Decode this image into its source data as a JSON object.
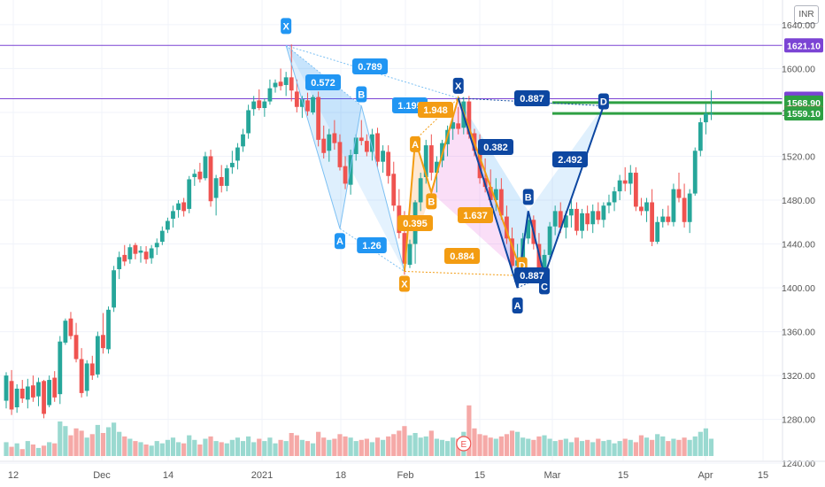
{
  "chart_data": {
    "type": "candlestick",
    "currency": "INR",
    "y_axis": {
      "ticks": [
        1240,
        1280,
        1320,
        1360,
        1400,
        1440,
        1480,
        1520,
        1560,
        1600,
        1640
      ],
      "tick_labels": [
        "1240.00",
        "1280.00",
        "1320.00",
        "1360.00",
        "1400.00",
        "1440.00",
        "1480.00",
        "1520.00",
        "1560.00",
        "1600.00",
        "1640.00"
      ],
      "range": [
        1228,
        1648
      ]
    },
    "x_axis": {
      "labels": [
        "12",
        "Dec",
        "14",
        "2021",
        "18",
        "Feb",
        "15",
        "Mar",
        "15",
        "Apr",
        "15"
      ]
    },
    "colors": {
      "up": "#26a69a",
      "down": "#ef5350",
      "purple": "#7b44d4",
      "green": "#2ea043",
      "blue_pattern": "#0d47a1",
      "orange_pattern": "#f39c12",
      "light_pattern": "#2196f3"
    },
    "price_labels": [
      {
        "text": "1621.10",
        "value": 1621.1,
        "color": "#7b44d4"
      },
      {
        "text": "1572.50",
        "value": 1572.5,
        "color": "#7b44d4"
      },
      {
        "text": "1568.90",
        "value": 1568.9,
        "color": "#2ea043"
      },
      {
        "text": "1559.35",
        "value": 1559.35,
        "color": "#ef5350"
      },
      {
        "text": "1559.10",
        "value": 1559.1,
        "color": "#2ea043"
      }
    ],
    "patterns": {
      "light": {
        "points": [
          [
            "X",
            1621
          ],
          [
            "A",
            1454
          ],
          [
            "B",
            1566
          ],
          [
            "X",
            1415
          ]
        ],
        "ratios": [
          "0.572",
          "0.789",
          "1.26"
        ]
      },
      "orange": {
        "points": [
          [
            "X",
            1415
          ],
          [
            "A",
            1535
          ],
          [
            "B",
            1487
          ],
          [
            "C",
            1573
          ],
          [
            "D",
            1411
          ]
        ],
        "ratios": [
          "0.395",
          "1.948",
          "1.637",
          "0.884"
        ]
      },
      "navy": {
        "points": [
          [
            "X",
            1573
          ],
          [
            "A",
            1400
          ],
          [
            "B",
            1470
          ],
          [
            "C",
            1411
          ],
          [
            "D",
            1566
          ]
        ],
        "ratios": [
          "0.382",
          "0.887",
          "2.492",
          "0.887"
        ]
      },
      "extra_labels": [
        "1.195"
      ]
    },
    "candles": [
      [
        1297,
        1323,
        1290,
        1320
      ],
      [
        1315,
        1325,
        1284,
        1289
      ],
      [
        1291,
        1312,
        1286,
        1308
      ],
      [
        1308,
        1316,
        1295,
        1299
      ],
      [
        1298,
        1317,
        1290,
        1310
      ],
      [
        1311,
        1320,
        1296,
        1300
      ],
      [
        1301,
        1318,
        1292,
        1314
      ],
      [
        1315,
        1316,
        1281,
        1285
      ],
      [
        1293,
        1320,
        1291,
        1316
      ],
      [
        1318,
        1324,
        1296,
        1300
      ],
      [
        1303,
        1356,
        1294,
        1351
      ],
      [
        1350,
        1372,
        1348,
        1370
      ],
      [
        1372,
        1378,
        1353,
        1356
      ],
      [
        1357,
        1368,
        1332,
        1335
      ],
      [
        1335,
        1345,
        1300,
        1304
      ],
      [
        1306,
        1334,
        1301,
        1331
      ],
      [
        1331,
        1338,
        1316,
        1320
      ],
      [
        1321,
        1360,
        1318,
        1356
      ],
      [
        1357,
        1377,
        1340,
        1345
      ],
      [
        1344,
        1383,
        1340,
        1380
      ],
      [
        1382,
        1420,
        1378,
        1416
      ],
      [
        1417,
        1433,
        1408,
        1428
      ],
      [
        1430,
        1439,
        1420,
        1424
      ],
      [
        1426,
        1440,
        1422,
        1437
      ],
      [
        1439,
        1441,
        1426,
        1431
      ],
      [
        1432,
        1438,
        1423,
        1434
      ],
      [
        1433,
        1438,
        1422,
        1426
      ],
      [
        1427,
        1439,
        1422,
        1436
      ],
      [
        1437,
        1445,
        1430,
        1441
      ],
      [
        1442,
        1456,
        1439,
        1452
      ],
      [
        1453,
        1464,
        1450,
        1461
      ],
      [
        1463,
        1475,
        1455,
        1470
      ],
      [
        1471,
        1480,
        1464,
        1477
      ],
      [
        1478,
        1482,
        1465,
        1470
      ],
      [
        1472,
        1502,
        1468,
        1499
      ],
      [
        1501,
        1508,
        1493,
        1504
      ],
      [
        1506,
        1514,
        1496,
        1499
      ],
      [
        1500,
        1524,
        1498,
        1520
      ],
      [
        1520,
        1526,
        1474,
        1479
      ],
      [
        1482,
        1503,
        1466,
        1500
      ],
      [
        1501,
        1512,
        1487,
        1493
      ],
      [
        1493,
        1512,
        1488,
        1509
      ],
      [
        1510,
        1525,
        1504,
        1514
      ],
      [
        1516,
        1532,
        1508,
        1528
      ],
      [
        1529,
        1545,
        1524,
        1540
      ],
      [
        1541,
        1567,
        1536,
        1562
      ],
      [
        1563,
        1575,
        1557,
        1570
      ],
      [
        1571,
        1581,
        1562,
        1564
      ],
      [
        1564,
        1573,
        1556,
        1570
      ],
      [
        1570,
        1590,
        1567,
        1582
      ],
      [
        1583,
        1590,
        1578,
        1587
      ],
      [
        1588,
        1600,
        1580,
        1584
      ],
      [
        1585,
        1597,
        1575,
        1592
      ],
      [
        1592,
        1622,
        1570,
        1580
      ],
      [
        1579,
        1590,
        1560,
        1565
      ],
      [
        1565,
        1575,
        1555,
        1572
      ],
      [
        1571,
        1578,
        1557,
        1561
      ],
      [
        1560,
        1576,
        1558,
        1574
      ],
      [
        1574,
        1579,
        1529,
        1535
      ],
      [
        1536,
        1548,
        1518,
        1523
      ],
      [
        1525,
        1545,
        1515,
        1540
      ],
      [
        1541,
        1553,
        1526,
        1532
      ],
      [
        1533,
        1540,
        1507,
        1510
      ],
      [
        1511,
        1520,
        1490,
        1495
      ],
      [
        1494,
        1526,
        1485,
        1521
      ],
      [
        1522,
        1540,
        1516,
        1537
      ],
      [
        1537,
        1553,
        1530,
        1534
      ],
      [
        1534,
        1540,
        1520,
        1524
      ],
      [
        1524,
        1545,
        1516,
        1540
      ],
      [
        1541,
        1546,
        1510,
        1515
      ],
      [
        1515,
        1530,
        1505,
        1525
      ],
      [
        1524,
        1530,
        1495,
        1502
      ],
      [
        1504,
        1515,
        1470,
        1475
      ],
      [
        1475,
        1490,
        1445,
        1450
      ],
      [
        1450,
        1470,
        1412,
        1422
      ],
      [
        1421,
        1444,
        1418,
        1440
      ],
      [
        1440,
        1480,
        1422,
        1478
      ],
      [
        1478,
        1505,
        1470,
        1500
      ],
      [
        1501,
        1535,
        1495,
        1530
      ],
      [
        1530,
        1540,
        1498,
        1505
      ],
      [
        1505,
        1520,
        1487,
        1515
      ],
      [
        1516,
        1535,
        1510,
        1532
      ],
      [
        1531,
        1548,
        1520,
        1544
      ],
      [
        1545,
        1559,
        1535,
        1551
      ],
      [
        1550,
        1565,
        1540,
        1545
      ],
      [
        1546,
        1574,
        1540,
        1570
      ],
      [
        1570,
        1575,
        1536,
        1540
      ],
      [
        1541,
        1545,
        1520,
        1525
      ],
      [
        1525,
        1540,
        1495,
        1500
      ],
      [
        1500,
        1518,
        1487,
        1492
      ],
      [
        1492,
        1508,
        1475,
        1480
      ],
      [
        1480,
        1500,
        1470,
        1490
      ],
      [
        1490,
        1500,
        1462,
        1466
      ],
      [
        1465,
        1475,
        1440,
        1445
      ],
      [
        1445,
        1455,
        1415,
        1420
      ],
      [
        1420,
        1440,
        1400,
        1425
      ],
      [
        1425,
        1450,
        1420,
        1445
      ],
      [
        1445,
        1470,
        1440,
        1462
      ],
      [
        1462,
        1466,
        1435,
        1440
      ],
      [
        1440,
        1450,
        1408,
        1414
      ],
      [
        1414,
        1435,
        1411,
        1430
      ],
      [
        1430,
        1460,
        1426,
        1456
      ],
      [
        1456,
        1475,
        1448,
        1470
      ],
      [
        1470,
        1478,
        1450,
        1455
      ],
      [
        1455,
        1470,
        1445,
        1466
      ],
      [
        1466,
        1480,
        1455,
        1472
      ],
      [
        1472,
        1478,
        1448,
        1452
      ],
      [
        1452,
        1472,
        1445,
        1468
      ],
      [
        1468,
        1475,
        1452,
        1458
      ],
      [
        1458,
        1476,
        1450,
        1470
      ],
      [
        1470,
        1478,
        1458,
        1462
      ],
      [
        1462,
        1478,
        1455,
        1475
      ],
      [
        1475,
        1485,
        1468,
        1478
      ],
      [
        1478,
        1492,
        1470,
        1488
      ],
      [
        1488,
        1503,
        1480,
        1498
      ],
      [
        1498,
        1510,
        1488,
        1495
      ],
      [
        1495,
        1512,
        1485,
        1505
      ],
      [
        1505,
        1510,
        1470,
        1474
      ],
      [
        1474,
        1482,
        1466,
        1470
      ],
      [
        1470,
        1482,
        1460,
        1478
      ],
      [
        1478,
        1490,
        1438,
        1442
      ],
      [
        1442,
        1465,
        1440,
        1460
      ],
      [
        1460,
        1472,
        1455,
        1465
      ],
      [
        1465,
        1475,
        1457,
        1460
      ],
      [
        1460,
        1495,
        1456,
        1490
      ],
      [
        1490,
        1505,
        1478,
        1482
      ],
      [
        1482,
        1495,
        1455,
        1460
      ],
      [
        1460,
        1490,
        1450,
        1486
      ],
      [
        1486,
        1528,
        1484,
        1525
      ],
      [
        1525,
        1555,
        1520,
        1551
      ],
      [
        1551,
        1568,
        1540,
        1559
      ],
      [
        1559,
        1580,
        1553,
        1559
      ]
    ],
    "volumes": [
      12,
      8,
      11,
      6,
      13,
      10,
      7,
      9,
      12,
      11,
      30,
      26,
      18,
      24,
      22,
      16,
      19,
      27,
      20,
      25,
      29,
      21,
      17,
      15,
      13,
      12,
      10,
      9,
      13,
      11,
      14,
      16,
      12,
      11,
      18,
      14,
      10,
      15,
      17,
      13,
      12,
      11,
      14,
      16,
      13,
      17,
      12,
      15,
      13,
      16,
      11,
      14,
      13,
      20,
      18,
      14,
      13,
      11,
      21,
      16,
      14,
      15,
      19,
      17,
      16,
      13,
      14,
      15,
      12,
      16,
      14,
      17,
      19,
      22,
      26,
      18,
      20,
      16,
      17,
      22,
      15,
      14,
      13,
      16,
      15,
      21,
      44,
      24,
      19,
      18,
      16,
      15,
      17,
      19,
      22,
      21,
      16,
      15,
      14,
      17,
      18,
      15,
      13,
      14,
      15,
      12,
      16,
      13,
      14,
      12,
      15,
      13,
      14,
      11,
      13,
      15,
      14,
      12,
      18,
      16,
      14,
      19,
      17,
      13,
      15,
      14,
      16,
      14,
      17,
      21,
      24,
      15
    ],
    "volume_marker": "E",
    "horizontal_lines": [
      {
        "value": 1621.1,
        "color": "#7b44d4"
      },
      {
        "value": 1572.5,
        "color": "#7b44d4"
      },
      {
        "value": 1568.9,
        "color": "#2ea043"
      },
      {
        "value": 1559.1,
        "color": "#2ea043"
      }
    ]
  }
}
